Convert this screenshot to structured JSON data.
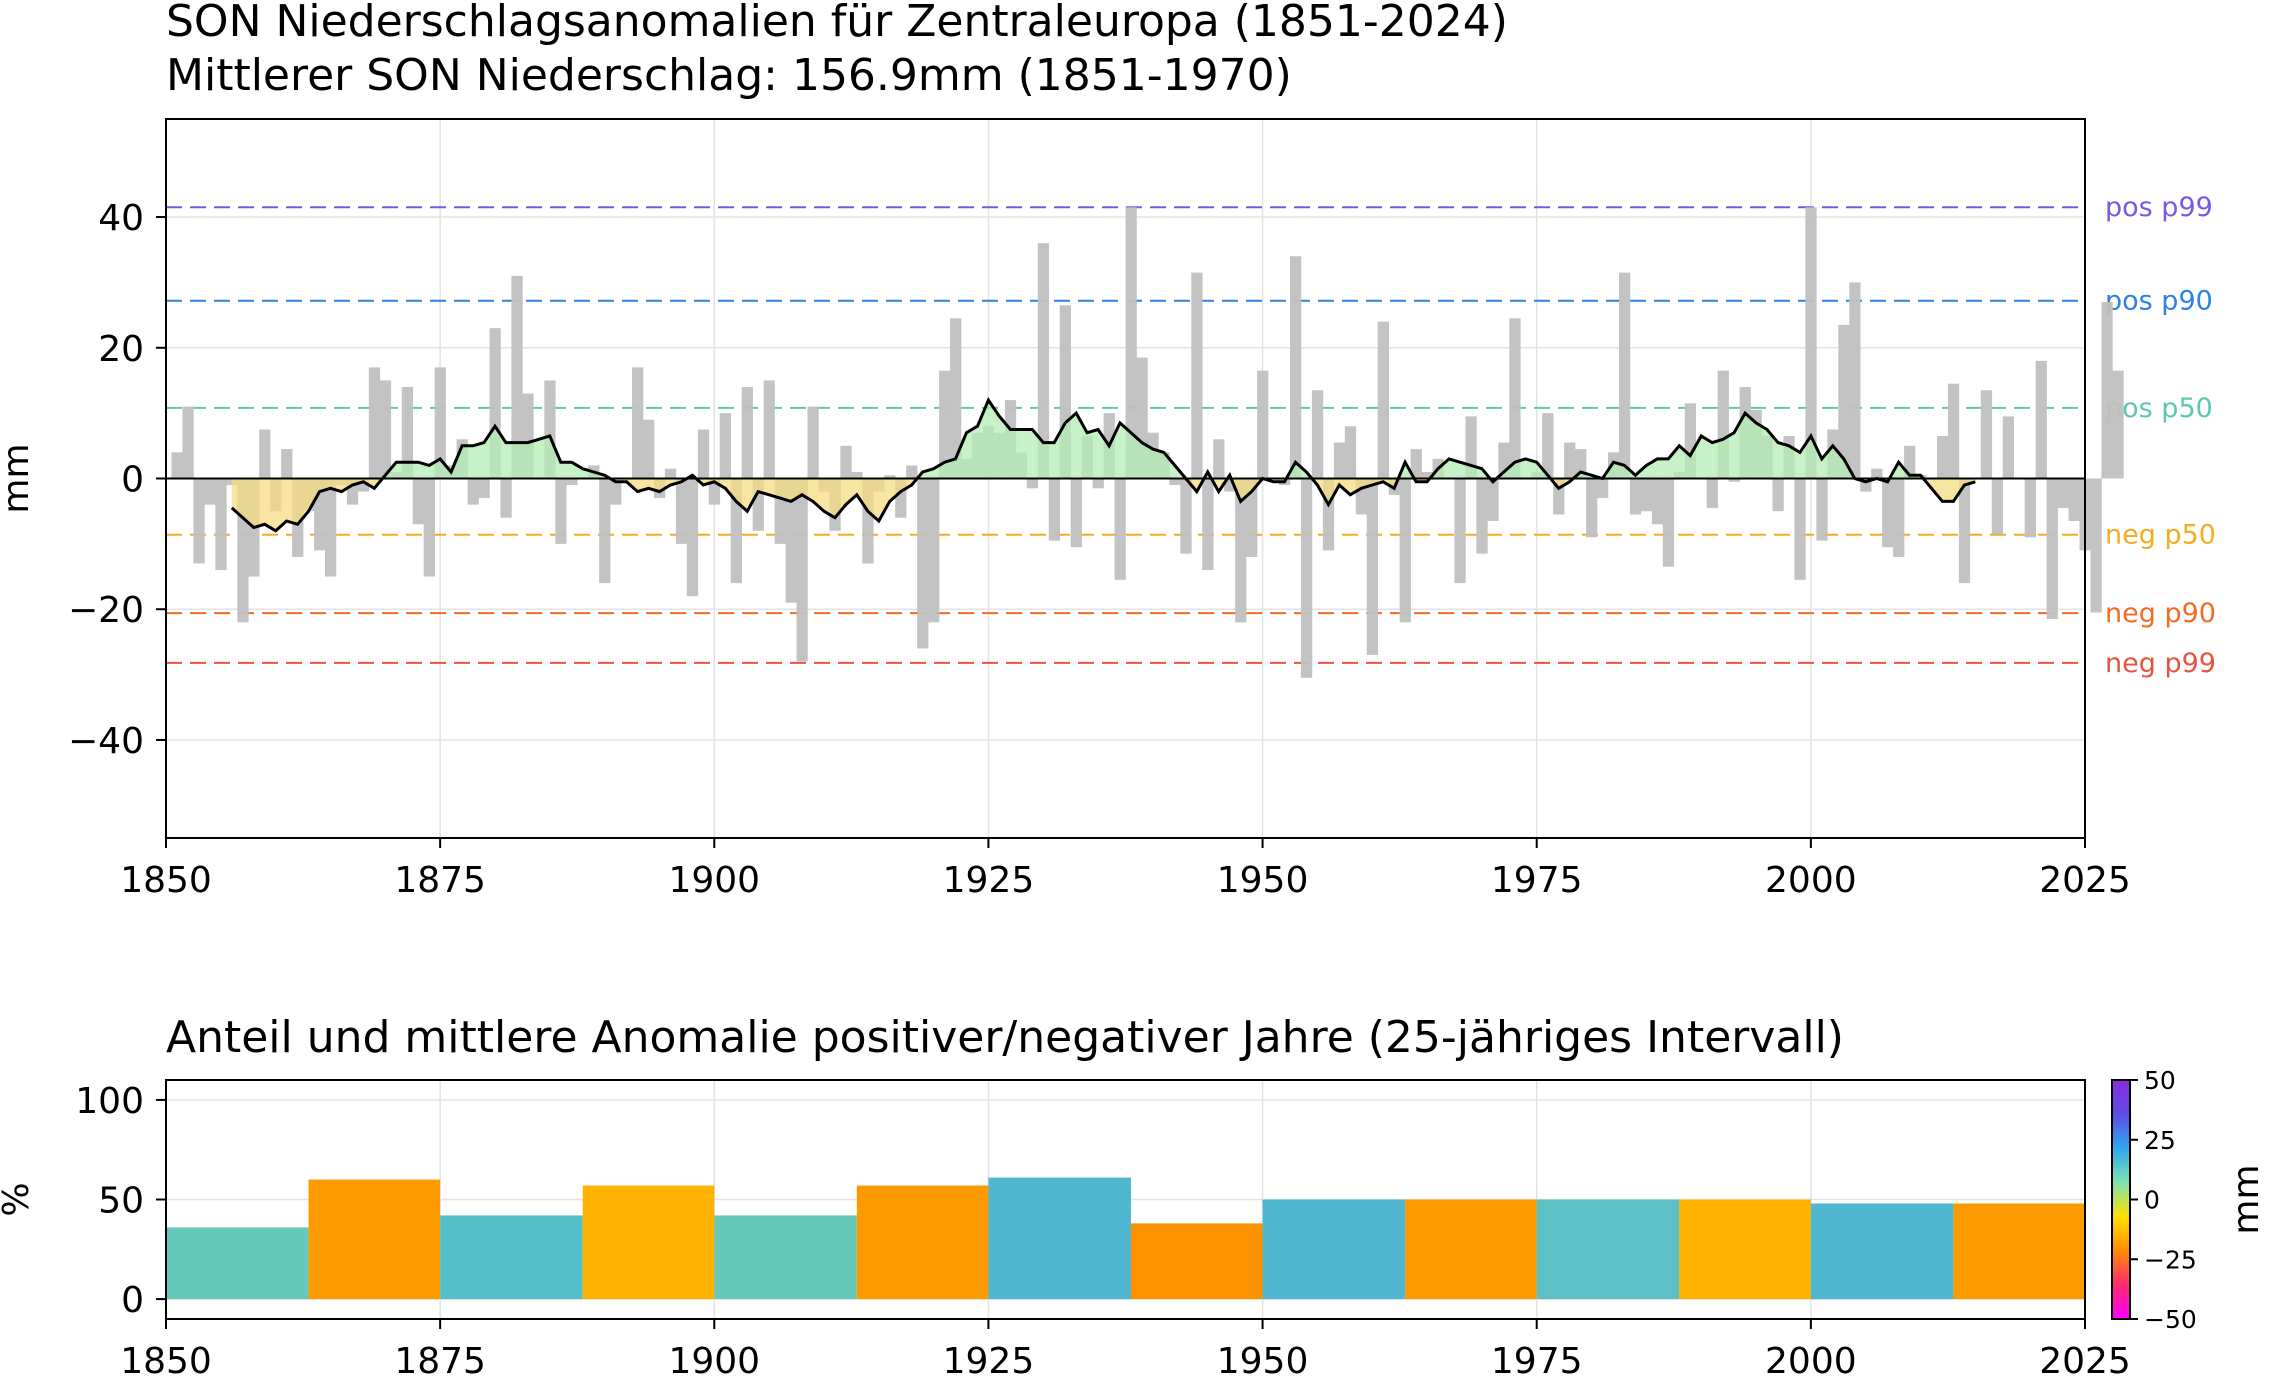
{
  "chart_data": [
    {
      "type": "bar",
      "title": "SON Niederschlagsanomalien für Zentraleuropa (1851-2024)",
      "subtitle": "Mittlerer SON Niederschlag: 156.9mm (1851-1970)",
      "xlabel": "",
      "ylabel": "mm",
      "xlim": [
        1850,
        2025
      ],
      "ylim": [
        -55,
        55
      ],
      "xticks": [
        "1850",
        "1875",
        "1900",
        "1925",
        "1950",
        "1975",
        "2000",
        "2025"
      ],
      "yticks": [
        "40",
        "20",
        "0",
        "−20",
        "−40"
      ],
      "grid": true,
      "thresholds": [
        {
          "label": "pos p99",
          "value": 41.5,
          "color": "#7b57e6"
        },
        {
          "label": "pos p90",
          "value": 27.2,
          "color": "#2e82e0"
        },
        {
          "label": "pos p50",
          "value": 10.8,
          "color": "#5cc8b2"
        },
        {
          "label": "neg p50",
          "value": -8.6,
          "color": "#f5ac22"
        },
        {
          "label": "neg p90",
          "value": -20.6,
          "color": "#f46b24"
        },
        {
          "label": "neg p99",
          "value": -28.2,
          "color": "#e8533e"
        }
      ],
      "bar_color": "#c0c0c0",
      "series": [
        {
          "x_start": 1851,
          "values": [
            4,
            11,
            -13,
            -4,
            -14,
            -1,
            -22,
            -15,
            7.5,
            -5,
            4.5,
            -12,
            -5,
            -11,
            -15,
            -1,
            -4,
            -2,
            17,
            15,
            1,
            14,
            -7,
            -15,
            17,
            2,
            6,
            -4,
            -3,
            23,
            -6,
            31,
            13,
            0,
            15,
            -10,
            -1,
            0,
            2,
            -16,
            -4,
            0,
            17,
            9,
            -3,
            1.5,
            -10,
            -18,
            7.5,
            -4,
            10,
            -16,
            14,
            -8,
            15,
            -10,
            -19,
            -28,
            11,
            -2,
            -8,
            5,
            1,
            -13,
            -2,
            0.5,
            -6,
            2,
            -26,
            -22,
            16.5,
            24.5,
            3,
            7,
            8,
            7,
            12,
            4,
            -1.5,
            36,
            -9.5,
            26.5,
            -10.5,
            6.5,
            -1.5,
            10,
            -15.5,
            41.5,
            18.5,
            7,
            4,
            -1,
            -11.5,
            31.5,
            -14,
            6,
            -2,
            -22,
            -12,
            16.5,
            0,
            -1,
            34,
            -30.5,
            13.5,
            -11,
            5.5,
            8,
            -5.5,
            -27,
            24,
            -2.5,
            -22,
            4.5,
            1,
            3,
            0,
            -16,
            9.5,
            -11.5,
            -6.5,
            5.5,
            24.5,
            0,
            1,
            10,
            -5.5,
            5.5,
            4.5,
            -9,
            -3,
            4,
            31.5,
            -5.5,
            -5,
            -7,
            -13.5,
            1,
            11.5,
            0,
            -4.5,
            16.5,
            -0.5,
            14,
            10.5,
            6.5,
            -5,
            6.5,
            -15.5,
            41.5,
            -9.5,
            7.5,
            23.5,
            30,
            -2,
            1.5,
            -10.5,
            -12,
            5,
            0.5,
            0,
            6.5,
            14.5,
            -16,
            0,
            13.5,
            -8.5,
            9.5,
            0,
            -9,
            18,
            -21.5,
            -4.5,
            -6.5,
            -11,
            -20.5,
            27,
            16.5
          ]
        }
      ],
      "smoothed": {
        "name": "smoothed",
        "color": "#000000",
        "pos_fill": "#b4eeb4",
        "neg_fill": "#f6dc82",
        "x_start": 1856,
        "values": [
          -4.5,
          -6,
          -7.5,
          -7,
          -8,
          -6.5,
          -7,
          -5,
          -2,
          -1.5,
          -2,
          -1,
          -0.5,
          -1.5,
          0.5,
          2.5,
          2.5,
          2.5,
          2,
          3,
          1,
          5,
          5,
          5.5,
          8,
          5.5,
          5.5,
          5.5,
          6,
          6.5,
          2.5,
          2.5,
          1.5,
          1,
          0.5,
          -0.5,
          -0.5,
          -2,
          -1.5,
          -2,
          -1,
          -0.5,
          0.5,
          -1,
          -0.5,
          -1.5,
          -3.5,
          -5,
          -2,
          -2.5,
          -3,
          -3.5,
          -2.5,
          -3.5,
          -5,
          -6,
          -4,
          -2.5,
          -5,
          -6.5,
          -3.5,
          -2,
          -1,
          1,
          1.5,
          2.5,
          3,
          7,
          8,
          12,
          9.5,
          7.5,
          7.5,
          7.5,
          5.5,
          5.5,
          8.5,
          10,
          7,
          7.5,
          5,
          8.5,
          7,
          5.5,
          4.5,
          4,
          2,
          0,
          -2,
          1,
          -2,
          0.5,
          -3.5,
          -2,
          0,
          -0.5,
          -0.5,
          2.5,
          1,
          -1,
          -4,
          -1,
          -2.5,
          -1.5,
          -1,
          -0.5,
          -1.5,
          2.5,
          -0.5,
          -0.5,
          1.5,
          3,
          2.5,
          2,
          1.5,
          -0.5,
          1,
          2.5,
          3,
          2.5,
          0.5,
          -1.5,
          -0.5,
          1,
          0.5,
          0,
          2.5,
          2,
          0.5,
          2,
          3,
          3,
          5,
          3.5,
          6.5,
          5.5,
          6,
          7,
          10,
          8.5,
          7.5,
          5.5,
          5,
          4,
          6.5,
          3,
          5,
          3,
          0,
          -0.5,
          0,
          -0.5,
          2.5,
          0.5,
          0.5,
          -1.5,
          -3.5,
          -3.5,
          -1,
          -0.5
        ]
      }
    },
    {
      "type": "bar",
      "title": "Anteil und mittlere Anomalie positiver/negativer Jahre (25-jähriges Intervall)",
      "xlabel": "",
      "ylabel": "%",
      "xlim": [
        1850,
        2025
      ],
      "ylim": [
        -10,
        110
      ],
      "xticks": [
        "1850",
        "1875",
        "1900",
        "1925",
        "1950",
        "1975",
        "2000",
        "2025"
      ],
      "yticks": [
        "100",
        "50",
        "0"
      ],
      "grid": true,
      "bars": [
        {
          "x0": 1850,
          "x1": 1863,
          "value": 36,
          "color": "#66c9b9"
        },
        {
          "x0": 1863,
          "x1": 1875,
          "value": 60,
          "color": "#fd9a00"
        },
        {
          "x0": 1875,
          "x1": 1888,
          "value": 42,
          "color": "#55bfc7"
        },
        {
          "x0": 1888,
          "x1": 1900,
          "value": 57,
          "color": "#ffb200"
        },
        {
          "x0": 1900,
          "x1": 1913,
          "value": 42,
          "color": "#66c9b9"
        },
        {
          "x0": 1913,
          "x1": 1925,
          "value": 57,
          "color": "#fd9a00"
        },
        {
          "x0": 1925,
          "x1": 1938,
          "value": 61,
          "color": "#4fb7d0"
        },
        {
          "x0": 1938,
          "x1": 1950,
          "value": 38,
          "color": "#fd9200"
        },
        {
          "x0": 1950,
          "x1": 1963,
          "value": 50,
          "color": "#4fb7d0"
        },
        {
          "x0": 1963,
          "x1": 1975,
          "value": 50,
          "color": "#fd9a00"
        },
        {
          "x0": 1975,
          "x1": 1988,
          "value": 50,
          "color": "#5cc0c4"
        },
        {
          "x0": 1988,
          "x1": 2000,
          "value": 50,
          "color": "#ffb200"
        },
        {
          "x0": 2000,
          "x1": 2013,
          "value": 48,
          "color": "#4fb7d0"
        },
        {
          "x0": 2013,
          "x1": 2025,
          "value": 48,
          "color": "#fd9a00"
        }
      ],
      "colorbar": {
        "label": "mm",
        "range": [
          -50,
          50
        ],
        "ticks": [
          "50",
          "25",
          "0",
          "−25",
          "−50"
        ],
        "stops": [
          "#ff00ff",
          "#ff2a6e",
          "#ff8c00",
          "#ffe000",
          "#7fe3b4",
          "#2ea8f0",
          "#5c4de3",
          "#8a2be2"
        ]
      }
    }
  ]
}
